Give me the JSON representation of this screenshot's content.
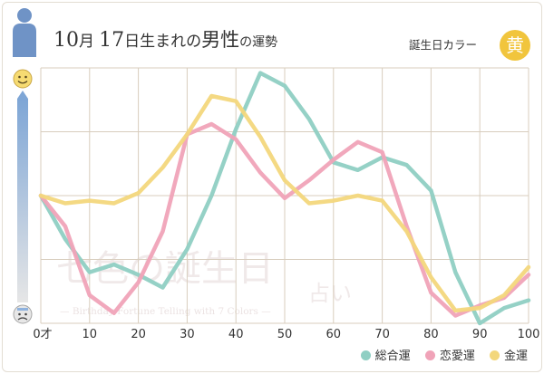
{
  "header": {
    "title_month_num": "10",
    "title_month_unit": "月",
    "title_day_num": "17",
    "title_day_unit": "日生まれの",
    "title_gender": "男性",
    "title_suffix": "の運勢",
    "birth_color_label": "誕生日カラー",
    "birth_color_char": "黄",
    "birth_color_hex": "#f1c53d"
  },
  "watermark": {
    "main": "七色の誕生日",
    "sub": "占い",
    "tagline": "— Birthday Fortune Telling with 7 Colors —"
  },
  "icons": {
    "top": "smiley-face-icon",
    "bottom": "worried-face-icon"
  },
  "chart_data": {
    "type": "line",
    "xlabel": "",
    "ylabel": "",
    "x_ticks": [
      "0才",
      "10",
      "20",
      "30",
      "40",
      "50",
      "60",
      "70",
      "80",
      "90",
      "100"
    ],
    "xlim": [
      0,
      100
    ],
    "ylim": [
      0,
      100
    ],
    "grid": true,
    "legend_position": "bottom-right",
    "series": [
      {
        "name": "総合運",
        "color": "#8fcfc3",
        "x": [
          0,
          5,
          10,
          15,
          20,
          25,
          30,
          35,
          40,
          45,
          50,
          55,
          60,
          65,
          70,
          75,
          80,
          85,
          90,
          95,
          100
        ],
        "y": [
          50,
          33,
          20,
          23,
          19,
          14,
          29,
          50,
          76,
          98,
          93,
          80,
          63,
          60,
          65,
          62,
          52,
          20,
          0,
          6,
          9
        ]
      },
      {
        "name": "恋愛運",
        "color": "#f0a3b8",
        "x": [
          0,
          5,
          10,
          15,
          20,
          25,
          30,
          35,
          40,
          45,
          50,
          55,
          60,
          65,
          70,
          75,
          80,
          85,
          90,
          95,
          100
        ],
        "y": [
          50,
          38,
          11,
          4,
          16,
          36,
          74,
          78,
          72,
          59,
          49,
          56,
          64,
          71,
          67,
          38,
          12,
          3,
          7,
          10,
          19
        ]
      },
      {
        "name": "金運",
        "color": "#f3d77c",
        "x": [
          0,
          5,
          10,
          15,
          20,
          25,
          30,
          35,
          40,
          45,
          50,
          55,
          60,
          65,
          70,
          75,
          80,
          85,
          90,
          95,
          100
        ],
        "y": [
          50,
          47,
          48,
          47,
          51,
          61,
          74,
          89,
          87,
          73,
          56,
          47,
          48,
          50,
          48,
          36,
          18,
          5,
          6,
          11,
          22
        ]
      }
    ]
  }
}
